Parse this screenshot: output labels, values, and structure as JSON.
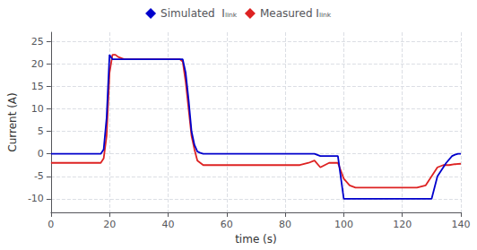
{
  "chart_data": {
    "type": "line",
    "xlabel": "time (s)",
    "ylabel": "Current (A)",
    "xlim": [
      0,
      140
    ],
    "xticks": [
      0,
      20,
      40,
      60,
      80,
      100,
      120,
      140
    ],
    "ylim": [
      -13,
      27
    ],
    "yticks": [
      -10,
      -5,
      0,
      5,
      10,
      15,
      20,
      25
    ],
    "grid": true,
    "legend": "top",
    "series": [
      {
        "name": "Simulated  Iₗᵢₙₖ",
        "color": "#0000cc",
        "x": [
          0,
          5,
          10,
          15,
          17,
          18,
          19,
          20,
          21,
          22,
          23,
          25,
          30,
          35,
          40,
          43,
          44,
          45,
          46,
          47,
          48,
          49,
          50,
          51,
          52,
          53,
          55,
          60,
          70,
          80,
          85,
          88,
          90,
          92,
          95,
          98,
          100,
          102,
          105,
          110,
          115,
          120,
          125,
          128,
          130,
          132,
          135,
          137,
          138,
          139,
          140
        ],
        "values": [
          0,
          0,
          0,
          0,
          0,
          1,
          8,
          22,
          21,
          21,
          21,
          21,
          21,
          21,
          21,
          21,
          21,
          21,
          18,
          12,
          5,
          2,
          0.5,
          0.2,
          0,
          0,
          0,
          0,
          0,
          0,
          0,
          0,
          0,
          -0.5,
          -0.5,
          -0.5,
          -10,
          -10,
          -10,
          -10,
          -10,
          -10,
          -10,
          -10,
          -10,
          -5,
          -2,
          -0.5,
          -0.2,
          0,
          0
        ]
      },
      {
        "name": "Measured Iₗᵢₙₖ",
        "color": "#dd2222",
        "x": [
          0,
          5,
          10,
          15,
          17,
          18,
          19,
          20,
          21,
          22,
          23,
          25,
          30,
          35,
          40,
          43,
          44,
          45,
          46,
          47,
          48,
          49,
          50,
          52,
          55,
          60,
          70,
          80,
          85,
          88,
          90,
          92,
          95,
          98,
          100,
          102,
          104,
          105,
          108,
          110,
          115,
          120,
          122,
          125,
          128,
          130,
          132,
          134,
          136,
          138,
          140
        ],
        "values": [
          -2,
          -2,
          -2,
          -2,
          -2,
          -1,
          4,
          18,
          22,
          22,
          21.5,
          21,
          21,
          21,
          21,
          21,
          21,
          20.5,
          16,
          10,
          4,
          1,
          -1.5,
          -2.5,
          -2.5,
          -2.5,
          -2.5,
          -2.5,
          -2.5,
          -2,
          -1.5,
          -3,
          -2,
          -2,
          -5.5,
          -7,
          -7.5,
          -7.5,
          -7.5,
          -7.5,
          -7.5,
          -7.5,
          -7.5,
          -7.5,
          -7,
          -5,
          -3,
          -2.5,
          -2.5,
          -2.3,
          -2.2
        ]
      }
    ]
  }
}
